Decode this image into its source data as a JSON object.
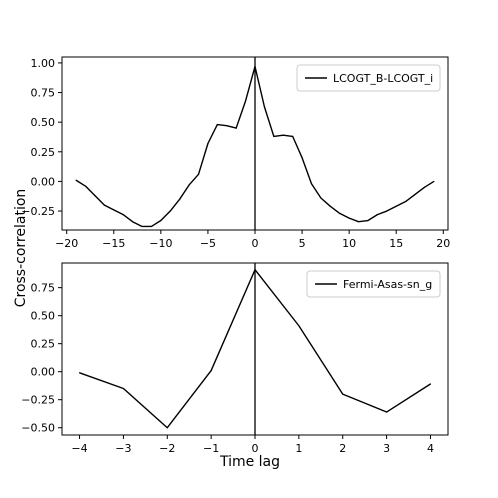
{
  "figure": {
    "xlabel": "Time lag",
    "ylabel": "Cross-correlation"
  },
  "chart_data": [
    {
      "type": "line",
      "title": "",
      "xlabel": "",
      "ylabel": "",
      "xlim": [
        -20.5,
        20.5
      ],
      "ylim": [
        -0.41,
        1.05
      ],
      "xticks": [
        -20,
        -15,
        -10,
        -5,
        0,
        5,
        10,
        15,
        20
      ],
      "yticks": [
        -0.25,
        0.0,
        0.25,
        0.5,
        0.75,
        1.0
      ],
      "xtick_labels": [
        "−20",
        "−15",
        "−10",
        "−5",
        "0",
        "5",
        "10",
        "15",
        "20"
      ],
      "ytick_labels": [
        "−0.25",
        "0.00",
        "0.25",
        "0.50",
        "0.75",
        "1.00"
      ],
      "grid": false,
      "legend_position": "top-right",
      "vline_x": 0,
      "series": [
        {
          "name": "LCOGT_B-LCOGT_i",
          "color": "#000000",
          "x": [
            -19,
            -18,
            -17,
            -16,
            -15,
            -14,
            -13,
            -12,
            -11,
            -10,
            -9,
            -8,
            -7,
            -6,
            -5,
            -4,
            -3,
            -2,
            -1,
            0,
            1,
            2,
            3,
            4,
            5,
            6,
            7,
            8,
            9,
            10,
            11,
            12,
            13,
            14,
            15,
            16,
            17,
            18,
            19
          ],
          "y": [
            0.01,
            -0.04,
            -0.12,
            -0.2,
            -0.24,
            -0.28,
            -0.34,
            -0.38,
            -0.38,
            -0.33,
            -0.25,
            -0.15,
            -0.03,
            0.06,
            0.32,
            0.48,
            0.47,
            0.45,
            0.68,
            0.97,
            0.63,
            0.38,
            0.39,
            0.38,
            0.2,
            -0.02,
            -0.14,
            -0.21,
            -0.27,
            -0.31,
            -0.34,
            -0.33,
            -0.28,
            -0.25,
            -0.21,
            -0.17,
            -0.11,
            -0.05,
            0.0
          ]
        }
      ]
    },
    {
      "type": "line",
      "title": "",
      "xlabel": "",
      "ylabel": "",
      "xlim": [
        -4.4,
        4.4
      ],
      "ylim": [
        -0.565,
        0.97
      ],
      "xticks": [
        -4,
        -3,
        -2,
        -1,
        0,
        1,
        2,
        3,
        4
      ],
      "yticks": [
        -0.5,
        -0.25,
        0.0,
        0.25,
        0.5,
        0.75
      ],
      "xtick_labels": [
        "−4",
        "−3",
        "−2",
        "−1",
        "0",
        "1",
        "2",
        "3",
        "4"
      ],
      "ytick_labels": [
        "−0.50",
        "−0.25",
        "0.00",
        "0.25",
        "0.50",
        "0.75"
      ],
      "grid": false,
      "legend_position": "top-right",
      "vline_x": 0,
      "series": [
        {
          "name": "Fermi-Asas-sn_g",
          "color": "#000000",
          "x": [
            -4,
            -3,
            -2,
            -1,
            0,
            1,
            2,
            3,
            4
          ],
          "y": [
            -0.01,
            -0.15,
            -0.5,
            0.01,
            0.91,
            0.41,
            -0.2,
            -0.36,
            -0.11
          ]
        }
      ]
    }
  ]
}
